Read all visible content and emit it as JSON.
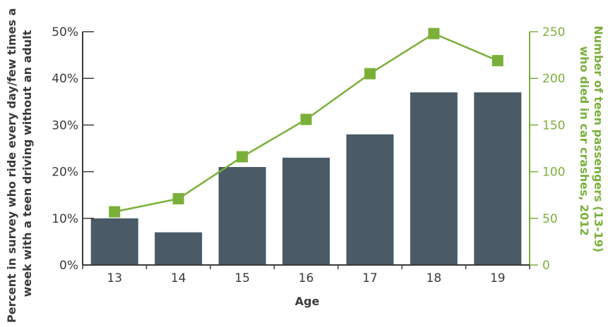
{
  "colors": {
    "bar": "#4a5a66",
    "line": "#7ab03a",
    "left_axis": "#3a3a3a",
    "right_axis": "#7ab03a"
  },
  "chart_data": {
    "type": "bar",
    "categories": [
      "13",
      "14",
      "15",
      "16",
      "17",
      "18",
      "19"
    ],
    "xlabel": "Age",
    "ylabel": [
      "Percent in survey who ride every day/few times a",
      "week with a teen driving without an adult"
    ],
    "y2label": [
      "Number of teen passengers (13-19)",
      "who died in car crashes, 2012"
    ],
    "ylim": [
      0,
      50
    ],
    "y2lim": [
      0,
      250
    ],
    "yticks": [
      "0%",
      "10%",
      "20%",
      "30%",
      "40%",
      "50%"
    ],
    "y2ticks": [
      "0",
      "50",
      "100",
      "150",
      "200",
      "250"
    ],
    "series": [
      {
        "type": "bar",
        "axis": "left",
        "values": [
          10,
          7,
          21,
          23,
          28,
          37,
          37
        ]
      },
      {
        "type": "line",
        "axis": "right",
        "values": [
          57,
          71,
          116,
          156,
          205,
          248,
          219
        ]
      }
    ],
    "grid": false,
    "legend": "none"
  }
}
